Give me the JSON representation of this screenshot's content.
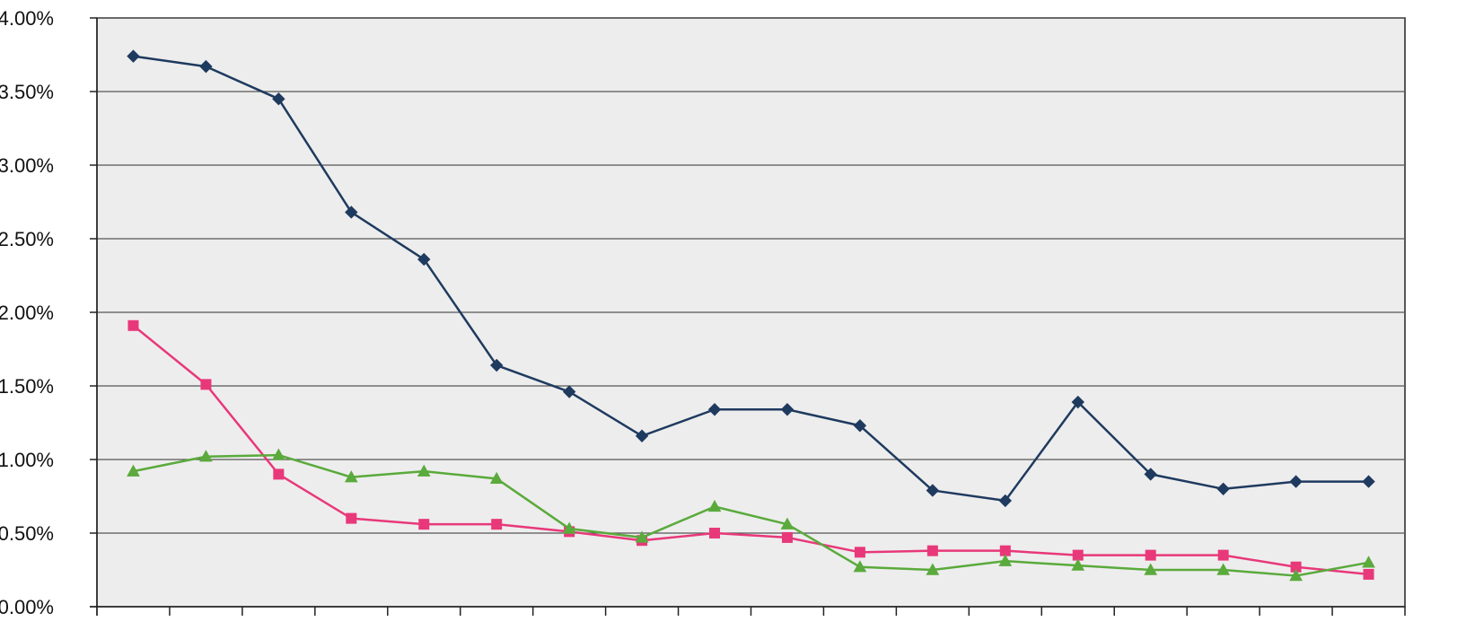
{
  "chart_data": {
    "type": "line",
    "title": "",
    "xlabel": "",
    "ylabel": "",
    "ylim": [
      0,
      0.04
    ],
    "y_tick_values": [
      0,
      0.005,
      0.01,
      0.015,
      0.02,
      0.025,
      0.03,
      0.035,
      0.04
    ],
    "y_tick_labels": [
      "0.00%",
      "0.50%",
      "1.00%",
      "1.50%",
      "2.00%",
      "2.50%",
      "3.00%",
      "3.50%",
      "4.00%"
    ],
    "x_category_count": 18,
    "grid": true,
    "legend": "none",
    "series": [
      {
        "color": "#1f3a5f",
        "marker": "diamond",
        "values": [
          0.0374,
          0.0367,
          0.0345,
          0.0268,
          0.0236,
          0.0164,
          0.0146,
          0.0116,
          0.0134,
          0.0134,
          0.0123,
          0.0079,
          0.0072,
          0.0139,
          0.009,
          0.008,
          0.0085,
          0.0085
        ]
      },
      {
        "color": "#e8387a",
        "marker": "square",
        "values": [
          0.0191,
          0.0151,
          0.009,
          0.006,
          0.0056,
          0.0056,
          0.0051,
          0.0045,
          0.005,
          0.0047,
          0.0037,
          0.0038,
          0.0038,
          0.0035,
          0.0035,
          0.0035,
          0.0027,
          0.0022
        ]
      },
      {
        "color": "#5aaa3c",
        "marker": "triangle",
        "values": [
          0.0092,
          0.0102,
          0.0103,
          0.0088,
          0.0092,
          0.0087,
          0.0053,
          0.0047,
          0.0068,
          0.0056,
          0.0027,
          0.0025,
          0.0031,
          0.0028,
          0.0025,
          0.0025,
          0.0021,
          0.003
        ]
      }
    ],
    "colors": {
      "plot_background": "#ededed",
      "grid": "#555555",
      "axis": "#222222",
      "text": "#111111"
    }
  }
}
